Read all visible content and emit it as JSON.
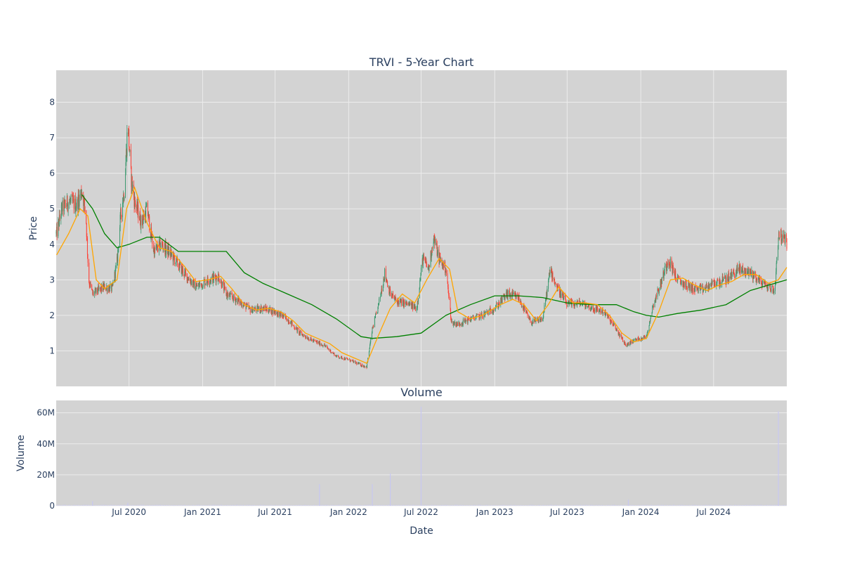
{
  "chart_data": [
    {
      "type": "candlestick",
      "title": "TRVI - 5-Year Chart",
      "ylabel": "Price",
      "xlabel": "",
      "xlim": [
        "2020-01-01",
        "2024-12-31"
      ],
      "ylim": [
        0.0,
        8.9
      ],
      "yticks": [
        1,
        2,
        3,
        4,
        5,
        6,
        7,
        8
      ],
      "grid": true,
      "colors": {
        "increasing": "#3d9970",
        "decreasing": "#ff4136",
        "ma_short": "#ffa500",
        "ma_long": "#008000",
        "plot_bg": "#d3d3d3",
        "grid": "#e8e8e8"
      },
      "price_path": [
        [
          "2020-01-02",
          4.3
        ],
        [
          "2020-01-15",
          5.0
        ],
        [
          "2020-02-01",
          5.2
        ],
        [
          "2020-02-20",
          5.1
        ],
        [
          "2020-03-05",
          5.5
        ],
        [
          "2020-03-15",
          4.9
        ],
        [
          "2020-03-22",
          3.0
        ],
        [
          "2020-04-01",
          2.6
        ],
        [
          "2020-04-15",
          2.7
        ],
        [
          "2020-05-01",
          2.8
        ],
        [
          "2020-05-20",
          2.75
        ],
        [
          "2020-06-01",
          3.5
        ],
        [
          "2020-06-10",
          4.8
        ],
        [
          "2020-06-20",
          5.6
        ],
        [
          "2020-06-28",
          7.5
        ],
        [
          "2020-07-05",
          6.0
        ],
        [
          "2020-07-15",
          5.2
        ],
        [
          "2020-08-01",
          4.6
        ],
        [
          "2020-08-15",
          5.0
        ],
        [
          "2020-09-01",
          3.8
        ],
        [
          "2020-09-20",
          4.0
        ],
        [
          "2020-10-15",
          3.7
        ],
        [
          "2020-11-15",
          3.2
        ],
        [
          "2020-12-15",
          2.8
        ],
        [
          "2021-01-15",
          3.0
        ],
        [
          "2021-02-10",
          3.1
        ],
        [
          "2021-03-01",
          2.6
        ],
        [
          "2021-04-01",
          2.4
        ],
        [
          "2021-05-01",
          2.15
        ],
        [
          "2021-06-01",
          2.2
        ],
        [
          "2021-07-01",
          2.1
        ],
        [
          "2021-08-01",
          1.9
        ],
        [
          "2021-09-01",
          1.5
        ],
        [
          "2021-10-01",
          1.3
        ],
        [
          "2021-11-01",
          1.15
        ],
        [
          "2021-12-01",
          0.85
        ],
        [
          "2022-01-01",
          0.75
        ],
        [
          "2022-02-01",
          0.6
        ],
        [
          "2022-02-15",
          0.55
        ],
        [
          "2022-03-01",
          1.6
        ],
        [
          "2022-03-15",
          2.2
        ],
        [
          "2022-04-01",
          3.2
        ],
        [
          "2022-04-15",
          2.6
        ],
        [
          "2022-05-01",
          2.4
        ],
        [
          "2022-06-01",
          2.3
        ],
        [
          "2022-06-20",
          2.2
        ],
        [
          "2022-07-05",
          3.6
        ],
        [
          "2022-07-20",
          3.3
        ],
        [
          "2022-08-01",
          4.2
        ],
        [
          "2022-08-15",
          3.6
        ],
        [
          "2022-09-01",
          3.3
        ],
        [
          "2022-09-15",
          1.8
        ],
        [
          "2022-10-01",
          1.75
        ],
        [
          "2022-11-01",
          1.9
        ],
        [
          "2022-12-01",
          2.0
        ],
        [
          "2023-01-01",
          2.2
        ],
        [
          "2023-02-01",
          2.6
        ],
        [
          "2023-03-01",
          2.5
        ],
        [
          "2023-04-01",
          1.8
        ],
        [
          "2023-05-01",
          1.9
        ],
        [
          "2023-05-20",
          3.3
        ],
        [
          "2023-06-05",
          2.8
        ],
        [
          "2023-07-01",
          2.3
        ],
        [
          "2023-08-01",
          2.35
        ],
        [
          "2023-09-01",
          2.2
        ],
        [
          "2023-10-01",
          2.1
        ],
        [
          "2023-11-01",
          1.6
        ],
        [
          "2023-11-25",
          1.15
        ],
        [
          "2023-12-15",
          1.3
        ],
        [
          "2024-01-15",
          1.4
        ],
        [
          "2024-02-01",
          2.3
        ],
        [
          "2024-02-20",
          2.9
        ],
        [
          "2024-03-10",
          3.6
        ],
        [
          "2024-04-01",
          3.0
        ],
        [
          "2024-05-01",
          2.8
        ],
        [
          "2024-06-01",
          2.7
        ],
        [
          "2024-07-01",
          2.9
        ],
        [
          "2024-08-01",
          3.0
        ],
        [
          "2024-09-01",
          3.3
        ],
        [
          "2024-10-01",
          3.2
        ],
        [
          "2024-11-01",
          2.9
        ],
        [
          "2024-12-01",
          2.7
        ],
        [
          "2024-12-10",
          4.3
        ],
        [
          "2024-12-31",
          4.05
        ]
      ],
      "ma_short": [
        [
          "2020-01-02",
          3.7
        ],
        [
          "2020-02-01",
          4.3
        ],
        [
          "2020-03-01",
          5.0
        ],
        [
          "2020-03-20",
          4.8
        ],
        [
          "2020-04-10",
          3.0
        ],
        [
          "2020-05-01",
          2.75
        ],
        [
          "2020-06-01",
          3.0
        ],
        [
          "2020-06-25",
          5.0
        ],
        [
          "2020-07-15",
          5.6
        ],
        [
          "2020-08-15",
          4.6
        ],
        [
          "2020-09-15",
          3.9
        ],
        [
          "2020-10-15",
          3.8
        ],
        [
          "2020-11-15",
          3.4
        ],
        [
          "2020-12-15",
          2.95
        ],
        [
          "2021-01-15",
          3.0
        ],
        [
          "2021-02-15",
          3.1
        ],
        [
          "2021-03-15",
          2.75
        ],
        [
          "2021-04-15",
          2.3
        ],
        [
          "2021-05-15",
          2.15
        ],
        [
          "2021-06-15",
          2.2
        ],
        [
          "2021-07-15",
          2.1
        ],
        [
          "2021-08-15",
          1.85
        ],
        [
          "2021-09-15",
          1.5
        ],
        [
          "2021-10-15",
          1.35
        ],
        [
          "2021-11-15",
          1.2
        ],
        [
          "2021-12-15",
          0.95
        ],
        [
          "2022-01-15",
          0.8
        ],
        [
          "2022-02-15",
          0.65
        ],
        [
          "2022-03-15",
          1.4
        ],
        [
          "2022-04-15",
          2.2
        ],
        [
          "2022-05-15",
          2.6
        ],
        [
          "2022-06-15",
          2.35
        ],
        [
          "2022-07-15",
          3.0
        ],
        [
          "2022-08-15",
          3.6
        ],
        [
          "2022-09-10",
          3.3
        ],
        [
          "2022-10-01",
          2.1
        ],
        [
          "2022-11-01",
          1.9
        ],
        [
          "2022-12-01",
          2.0
        ],
        [
          "2023-01-15",
          2.3
        ],
        [
          "2023-02-15",
          2.45
        ],
        [
          "2023-03-15",
          2.3
        ],
        [
          "2023-04-15",
          1.85
        ],
        [
          "2023-05-15",
          2.3
        ],
        [
          "2023-06-10",
          2.8
        ],
        [
          "2023-07-15",
          2.35
        ],
        [
          "2023-08-15",
          2.35
        ],
        [
          "2023-09-15",
          2.3
        ],
        [
          "2023-10-15",
          2.0
        ],
        [
          "2023-11-15",
          1.5
        ],
        [
          "2023-12-15",
          1.25
        ],
        [
          "2024-01-15",
          1.35
        ],
        [
          "2024-02-15",
          2.1
        ],
        [
          "2024-03-15",
          3.0
        ],
        [
          "2024-04-15",
          3.05
        ],
        [
          "2024-05-15",
          2.85
        ],
        [
          "2024-06-15",
          2.7
        ],
        [
          "2024-07-15",
          2.85
        ],
        [
          "2024-08-15",
          2.95
        ],
        [
          "2024-09-15",
          3.15
        ],
        [
          "2024-10-15",
          3.15
        ],
        [
          "2024-11-15",
          2.9
        ],
        [
          "2024-12-10",
          3.0
        ],
        [
          "2024-12-31",
          3.35
        ]
      ],
      "ma_long": [
        [
          "2020-03-05",
          5.4
        ],
        [
          "2020-04-01",
          5.0
        ],
        [
          "2020-05-01",
          4.3
        ],
        [
          "2020-06-01",
          3.9
        ],
        [
          "2020-07-01",
          4.0
        ],
        [
          "2020-08-15",
          4.2
        ],
        [
          "2020-09-15",
          4.2
        ],
        [
          "2020-11-01",
          3.8
        ],
        [
          "2021-01-01",
          3.8
        ],
        [
          "2021-03-01",
          3.8
        ],
        [
          "2021-04-15",
          3.2
        ],
        [
          "2021-06-01",
          2.9
        ],
        [
          "2021-08-01",
          2.6
        ],
        [
          "2021-10-01",
          2.3
        ],
        [
          "2021-12-01",
          1.9
        ],
        [
          "2022-02-01",
          1.4
        ],
        [
          "2022-03-01",
          1.35
        ],
        [
          "2022-05-01",
          1.4
        ],
        [
          "2022-07-01",
          1.5
        ],
        [
          "2022-09-01",
          2.0
        ],
        [
          "2022-11-01",
          2.3
        ],
        [
          "2023-01-01",
          2.55
        ],
        [
          "2023-03-01",
          2.55
        ],
        [
          "2023-05-01",
          2.5
        ],
        [
          "2023-07-01",
          2.35
        ],
        [
          "2023-09-01",
          2.3
        ],
        [
          "2023-11-01",
          2.3
        ],
        [
          "2023-12-15",
          2.1
        ],
        [
          "2024-01-15",
          2.0
        ],
        [
          "2024-02-15",
          1.95
        ],
        [
          "2024-04-01",
          2.05
        ],
        [
          "2024-06-01",
          2.15
        ],
        [
          "2024-08-01",
          2.3
        ],
        [
          "2024-10-01",
          2.7
        ],
        [
          "2024-12-31",
          3.0
        ]
      ]
    },
    {
      "type": "bar",
      "title": "Volume",
      "xlabel": "Date",
      "ylabel": "Volume",
      "xlim": [
        "2020-01-01",
        "2024-12-31"
      ],
      "ylim": [
        0,
        68000000
      ],
      "yticks": [
        0,
        20000000,
        40000000,
        60000000
      ],
      "ytick_labels": [
        "0",
        "20M",
        "40M",
        "60M"
      ],
      "xticks": [
        "2020-07-01",
        "2021-01-01",
        "2021-07-01",
        "2022-01-01",
        "2022-07-01",
        "2023-01-01",
        "2023-07-01",
        "2024-01-01",
        "2024-07-01"
      ],
      "xtick_labels": [
        "Jul 2020",
        "Jan 2021",
        "Jul 2021",
        "Jan 2022",
        "Jul 2022",
        "Jan 2023",
        "Jul 2023",
        "Jan 2024",
        "Jul 2024"
      ],
      "bar_color": "#c8c8f0",
      "spikes": [
        [
          "2020-04-01",
          3000000
        ],
        [
          "2020-06-28",
          2000000
        ],
        [
          "2021-10-20",
          14000000
        ],
        [
          "2022-03-01",
          14000000
        ],
        [
          "2022-04-15",
          21000000
        ],
        [
          "2022-07-01",
          64000000
        ],
        [
          "2023-12-01",
          4000000
        ],
        [
          "2024-12-10",
          61000000
        ]
      ],
      "baseline_volume": 500000
    }
  ]
}
